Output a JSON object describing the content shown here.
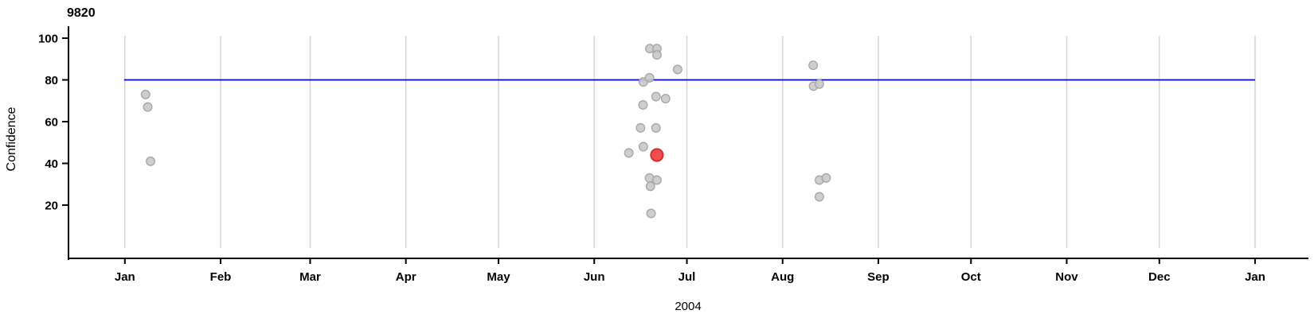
{
  "chart_data": {
    "type": "scatter",
    "title": "9820",
    "ylabel": "Confidence",
    "xlabel": "2004",
    "x_axis": {
      "unit": "date",
      "start": "2004-01-01",
      "end": "2005-01-01",
      "tick_labels": [
        "Jan",
        "Feb",
        "Mar",
        "Apr",
        "May",
        "Jun",
        "Jul",
        "Aug",
        "Sep",
        "Oct",
        "Nov",
        "Dec",
        "Jan"
      ],
      "tick_day_offsets": [
        0,
        31,
        60,
        91,
        121,
        152,
        182,
        213,
        244,
        274,
        305,
        335,
        366
      ],
      "grid": "vertical-at-month-starts"
    },
    "y_axis": {
      "ticks": [
        20,
        40,
        60,
        80,
        100
      ],
      "range": [
        0,
        110
      ]
    },
    "reference_line": {
      "value": 80,
      "color": "#0000CD"
    },
    "legend": "none",
    "grid_color": "#D6D6D6",
    "point_style": {
      "default_fill": "#C9C9C9",
      "default_stroke": "#A5A5A5",
      "highlight_fill": "#EE3B3B",
      "highlight_stroke": "#D32F2F"
    },
    "points": [
      {
        "date": "2004-01-08",
        "day": 6.7,
        "confidence": 73,
        "highlighted": false
      },
      {
        "date": "2004-01-08",
        "day": 7.4,
        "confidence": 67,
        "highlighted": false
      },
      {
        "date": "2004-01-09",
        "day": 8.3,
        "confidence": 41,
        "highlighted": false
      },
      {
        "date": "2004-06-12",
        "day": 163.2,
        "confidence": 45,
        "highlighted": false
      },
      {
        "date": "2004-06-16",
        "day": 167.0,
        "confidence": 57,
        "highlighted": false
      },
      {
        "date": "2004-06-17",
        "day": 167.8,
        "confidence": 68,
        "highlighted": false
      },
      {
        "date": "2004-06-17",
        "day": 167.9,
        "confidence": 79,
        "highlighted": false
      },
      {
        "date": "2004-06-17",
        "day": 167.9,
        "confidence": 48,
        "highlighted": false
      },
      {
        "date": "2004-06-19",
        "day": 169.9,
        "confidence": 81,
        "highlighted": false
      },
      {
        "date": "2004-06-19",
        "day": 170.0,
        "confidence": 95,
        "highlighted": false
      },
      {
        "date": "2004-06-19",
        "day": 169.9,
        "confidence": 33,
        "highlighted": false
      },
      {
        "date": "2004-06-19",
        "day": 170.2,
        "confidence": 29,
        "highlighted": false
      },
      {
        "date": "2004-06-19",
        "day": 170.4,
        "confidence": 16,
        "highlighted": false
      },
      {
        "date": "2004-06-21",
        "day": 172.3,
        "confidence": 95,
        "highlighted": false
      },
      {
        "date": "2004-06-21",
        "day": 172.3,
        "confidence": 92,
        "highlighted": false
      },
      {
        "date": "2004-06-21",
        "day": 172.0,
        "confidence": 72,
        "highlighted": false
      },
      {
        "date": "2004-06-21",
        "day": 172.0,
        "confidence": 57,
        "highlighted": false
      },
      {
        "date": "2004-06-21",
        "day": 172.3,
        "confidence": 44,
        "highlighted": true
      },
      {
        "date": "2004-06-21",
        "day": 172.3,
        "confidence": 32,
        "highlighted": false
      },
      {
        "date": "2004-06-24",
        "day": 175.1,
        "confidence": 71,
        "highlighted": false
      },
      {
        "date": "2004-06-28",
        "day": 179.0,
        "confidence": 85,
        "highlighted": false
      },
      {
        "date": "2004-08-11",
        "day": 222.9,
        "confidence": 87,
        "highlighted": false
      },
      {
        "date": "2004-08-11",
        "day": 223.0,
        "confidence": 77,
        "highlighted": false
      },
      {
        "date": "2004-08-13",
        "day": 224.9,
        "confidence": 78,
        "highlighted": false
      },
      {
        "date": "2004-08-13",
        "day": 224.9,
        "confidence": 32,
        "highlighted": false
      },
      {
        "date": "2004-08-13",
        "day": 224.9,
        "confidence": 24,
        "highlighted": false
      },
      {
        "date": "2004-08-15",
        "day": 227.1,
        "confidence": 33,
        "highlighted": false
      }
    ]
  }
}
